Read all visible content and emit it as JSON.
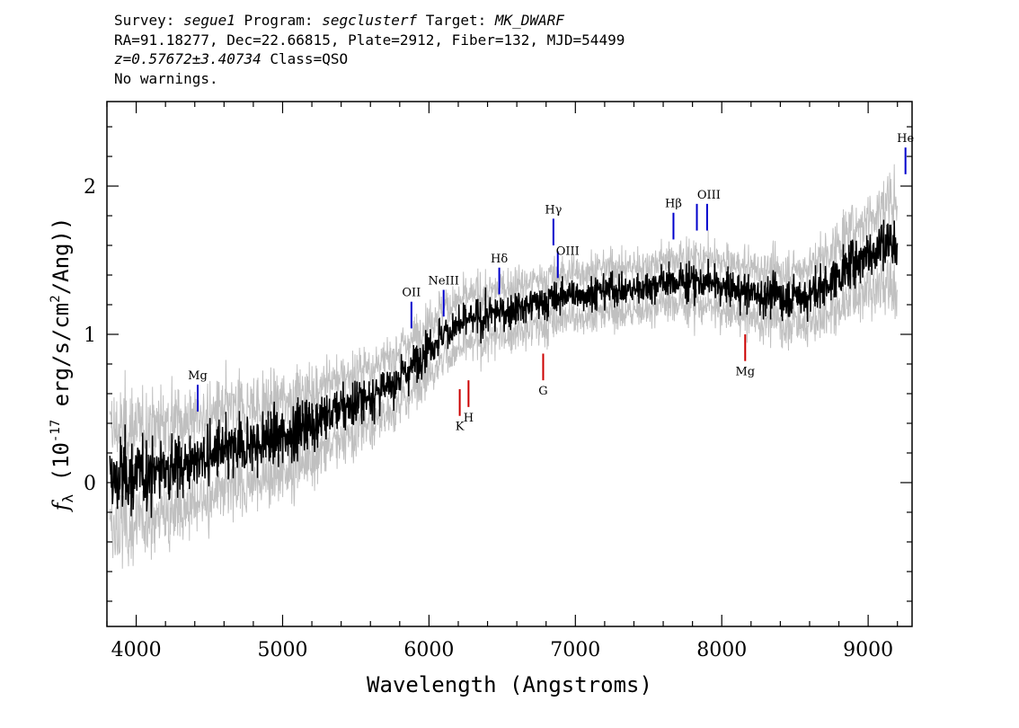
{
  "header": {
    "survey_label": "Survey: ",
    "survey": "segue1",
    "program_label": " Program: ",
    "program": "segclusterf",
    "target_label": " Target: ",
    "target": "MK_DWARF",
    "line2": "RA=91.18277, Dec=22.66815, Plate=2912, Fiber=132, MJD=54499",
    "redshift": "z=0.57672±3.40734",
    "class_text": " Class=QSO",
    "warnings": "No warnings."
  },
  "chart_data": {
    "type": "line",
    "xlabel": "Wavelength (Angstroms)",
    "ylabel": "f_λ (10^-17 erg/s/cm^2/Ang)",
    "xlim": [
      3800,
      9300
    ],
    "ylim": [
      -0.97,
      2.57
    ],
    "x_ticks": [
      4000,
      5000,
      6000,
      7000,
      8000,
      9000
    ],
    "y_ticks": [
      0,
      1,
      2
    ],
    "x_minor_step": 200,
    "y_minor_step": 0.2,
    "series": [
      {
        "role": "flux",
        "color": "#000000",
        "x": [
          3820,
          3900,
          4000,
          4100,
          4200,
          4300,
          4400,
          4500,
          4600,
          4700,
          4800,
          4900,
          5000,
          5100,
          5200,
          5300,
          5400,
          5500,
          5600,
          5700,
          5800,
          5900,
          6000,
          6100,
          6200,
          6300,
          6400,
          6500,
          6600,
          6700,
          6800,
          6900,
          7000,
          7100,
          7200,
          7300,
          7400,
          7500,
          7600,
          7700,
          7800,
          7900,
          8000,
          8100,
          8200,
          8300,
          8400,
          8500,
          8600,
          8700,
          8800,
          8900,
          9000,
          9100,
          9200
        ],
        "y": [
          0.0,
          0.03,
          0.05,
          0.08,
          0.1,
          0.13,
          0.15,
          0.17,
          0.2,
          0.22,
          0.25,
          0.29,
          0.32,
          0.36,
          0.4,
          0.45,
          0.5,
          0.54,
          0.58,
          0.63,
          0.7,
          0.8,
          0.92,
          1.0,
          1.06,
          1.1,
          1.12,
          1.15,
          1.18,
          1.2,
          1.22,
          1.25,
          1.27,
          1.28,
          1.3,
          1.3,
          1.3,
          1.32,
          1.35,
          1.35,
          1.35,
          1.36,
          1.32,
          1.3,
          1.28,
          1.27,
          1.25,
          1.25,
          1.27,
          1.32,
          1.4,
          1.48,
          1.55,
          1.6,
          1.65
        ]
      },
      {
        "role": "error",
        "color": "#c0c0c0",
        "x": [
          3820,
          4000,
          4500,
          5000,
          5500,
          6000,
          6500,
          7000,
          7500,
          8000,
          8500,
          9000,
          9200
        ],
        "y": [
          0.35,
          0.32,
          0.28,
          0.24,
          0.2,
          0.17,
          0.16,
          0.15,
          0.15,
          0.16,
          0.18,
          0.24,
          0.3
        ]
      }
    ],
    "line_markers": [
      {
        "label": "Mg",
        "x": 4420,
        "y0": 0.48,
        "y1": 0.66,
        "color": "#0000cc",
        "label_pos": "above"
      },
      {
        "label": "OII",
        "x": 5880,
        "y0": 1.04,
        "y1": 1.22,
        "color": "#0000cc",
        "label_pos": "above"
      },
      {
        "label": "NeIII",
        "x": 6100,
        "y0": 1.12,
        "y1": 1.3,
        "color": "#0000cc",
        "label_pos": "above"
      },
      {
        "label": "Hδ",
        "x": 6480,
        "y0": 1.27,
        "y1": 1.45,
        "color": "#0000cc",
        "label_pos": "above"
      },
      {
        "label": "Hγ",
        "x": 6850,
        "y0": 1.6,
        "y1": 1.78,
        "color": "#0000cc",
        "label_pos": "above"
      },
      {
        "label": "OIII",
        "x": 6880,
        "y0": 1.38,
        "y1": 1.56,
        "color": "#0000cc",
        "label_pos": "right"
      },
      {
        "label": "Hβ",
        "x": 7670,
        "y0": 1.64,
        "y1": 1.82,
        "color": "#0000cc",
        "label_pos": "above"
      },
      {
        "label": "OIII",
        "x": 7830,
        "y0": 1.7,
        "y1": 1.88,
        "color": "#0000cc",
        "label_pos": "none"
      },
      {
        "label": "OIII",
        "x": 7900,
        "y0": 1.7,
        "y1": 1.88,
        "color": "#0000cc",
        "label_pos": "above-left"
      },
      {
        "label": "He",
        "x": 9255,
        "y0": 2.08,
        "y1": 2.26,
        "color": "#0000cc",
        "label_pos": "above"
      },
      {
        "label": "K",
        "x": 6210,
        "y0": 0.45,
        "y1": 0.63,
        "color": "#cc0000",
        "label_pos": "below"
      },
      {
        "label": "H",
        "x": 6270,
        "y0": 0.51,
        "y1": 0.69,
        "color": "#cc0000",
        "label_pos": "below"
      },
      {
        "label": "G",
        "x": 6780,
        "y0": 0.69,
        "y1": 0.87,
        "color": "#cc0000",
        "label_pos": "below"
      },
      {
        "label": "Mg",
        "x": 8160,
        "y0": 0.82,
        "y1": 1.0,
        "color": "#cc0000",
        "label_pos": "below"
      }
    ]
  }
}
